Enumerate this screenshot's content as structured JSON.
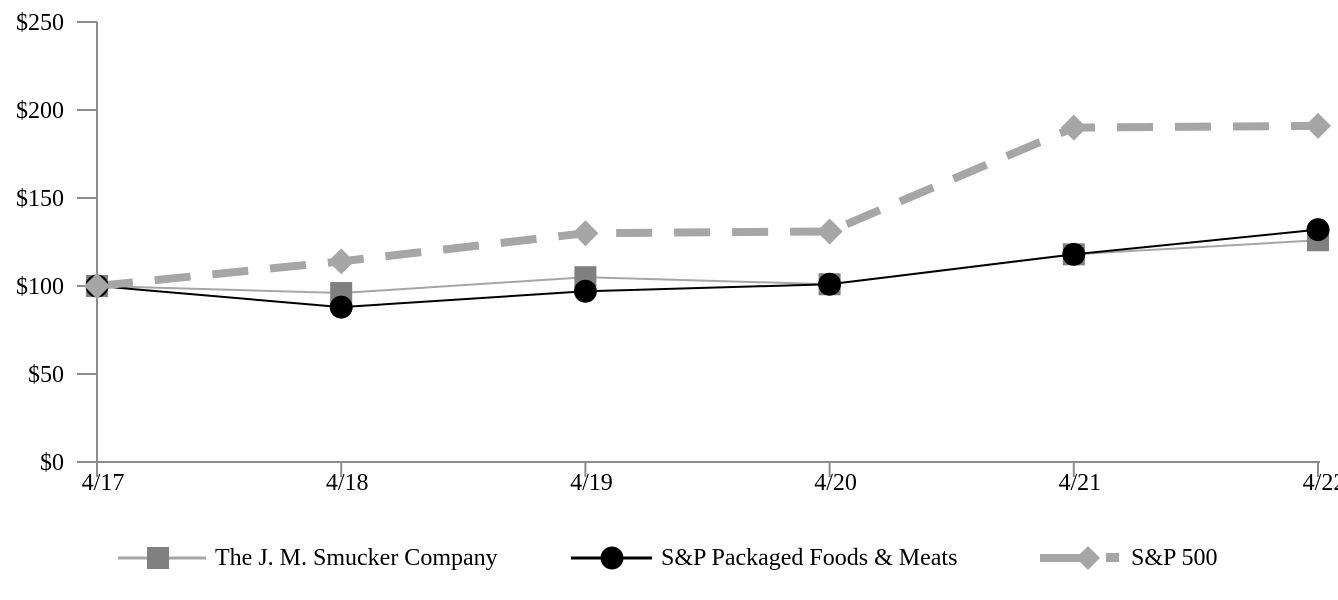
{
  "chart_data": {
    "type": "line",
    "title": "",
    "xlabel": "",
    "ylabel": "",
    "categories": [
      "4/17",
      "4/18",
      "4/19",
      "4/20",
      "4/21",
      "4/22"
    ],
    "series": [
      {
        "name": "The J. M. Smucker Company",
        "values": [
          100,
          96,
          105,
          101,
          118,
          126
        ],
        "marker": "square",
        "line_style": "solid",
        "line_width": 2,
        "color": "#a6a6a6",
        "marker_color": "#808080"
      },
      {
        "name": "S&P Packaged Foods & Meats",
        "values": [
          100,
          88,
          97,
          101,
          118,
          132
        ],
        "marker": "circle",
        "line_style": "solid",
        "line_width": 2,
        "color": "#000000",
        "marker_color": "#000000"
      },
      {
        "name": "S&P 500",
        "values": [
          100,
          114,
          130,
          131,
          190,
          191
        ],
        "marker": "diamond",
        "line_style": "dashed",
        "line_width": 8,
        "color": "#a6a6a6",
        "marker_color": "#a6a6a6"
      }
    ],
    "ylim": [
      0,
      250
    ],
    "ytick_step": 50,
    "ytick_labels": [
      "$0",
      "$50",
      "$100",
      "$150",
      "$200",
      "$250"
    ],
    "grid": false,
    "legend_position": "bottom",
    "axis_color": "#8c8c8c",
    "text_color": "#000000"
  }
}
